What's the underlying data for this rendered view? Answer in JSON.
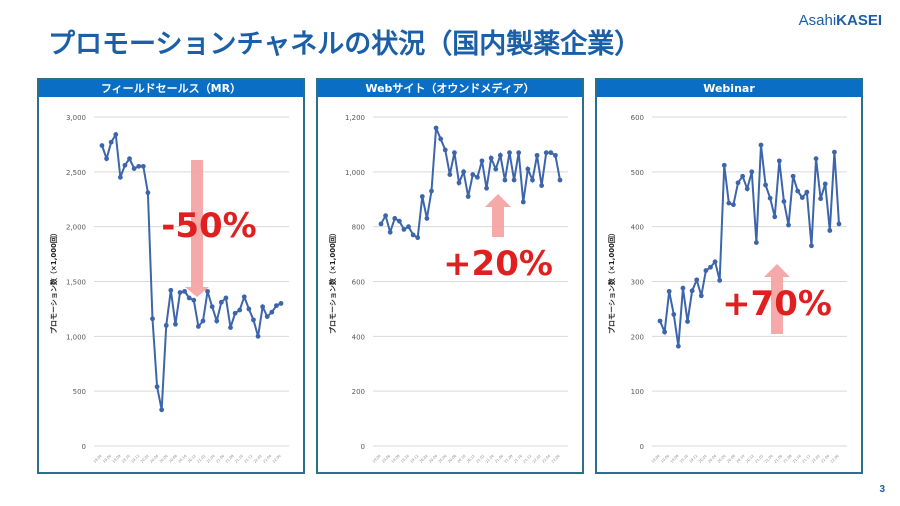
{
  "header": {
    "title": "プロモーションチャネルの状況（国内製薬企業）",
    "logo_light": "Asahi",
    "logo_bold": "KASEI"
  },
  "page_number": "3",
  "colors": {
    "title": "#1a5fa8",
    "panel_header": "#0a6fc4",
    "line": "#3d65ab",
    "arrow": "#f4a0a0",
    "annotation": "#e02020"
  },
  "chart_data": [
    {
      "type": "line",
      "title": "フィールドセールス（MR）",
      "ylabel": "プロモーション数（×1,000回）",
      "xlabel": "",
      "ylim": [
        0,
        3000
      ],
      "yticks": [
        0,
        500,
        1000,
        1500,
        2000,
        2500,
        3000
      ],
      "ytick_labels": [
        "0",
        "500",
        "1,000",
        "1,500",
        "2,000",
        "2,500",
        "3,000"
      ],
      "grid": true,
      "x_tick_labels": [
        "19.04",
        "19.06",
        "19.08",
        "19.10",
        "19.12",
        "20.02",
        "20.04",
        "20.06",
        "20.08",
        "20.10",
        "20.12",
        "21.02",
        "21.04",
        "21.06",
        "21.08",
        "21.10",
        "21.12",
        "22.02",
        "22.04",
        "22.06"
      ],
      "values": [
        2740,
        2620,
        2770,
        2840,
        2450,
        2560,
        2620,
        2530,
        2550,
        2550,
        2310,
        1160,
        540,
        330,
        1100,
        1420,
        1110,
        1400,
        1410,
        1350,
        1330,
        1090,
        1140,
        1410,
        1270,
        1140,
        1310,
        1350,
        1080,
        1210,
        1240,
        1360,
        1250,
        1150,
        1000,
        1270,
        1180,
        1220,
        1280,
        1300
      ],
      "annotation": {
        "text": "-50%",
        "direction": "down"
      }
    },
    {
      "type": "line",
      "title": "Webサイト（オウンドメディア）",
      "ylabel": "プロモーション数（×1,000回）",
      "xlabel": "",
      "ylim": [
        0,
        1200
      ],
      "yticks": [
        0,
        200,
        400,
        600,
        800,
        1000,
        1200
      ],
      "ytick_labels": [
        "0",
        "200",
        "400",
        "600",
        "800",
        "1,000",
        "1,200"
      ],
      "grid": true,
      "x_tick_labels": [
        "19.04",
        "19.06",
        "19.08",
        "19.10",
        "19.12",
        "20.02",
        "20.04",
        "20.06",
        "20.08",
        "20.10",
        "20.12",
        "21.02",
        "21.04",
        "21.06",
        "21.08",
        "21.10",
        "21.12",
        "22.02",
        "22.04",
        "22.06"
      ],
      "values": [
        810,
        840,
        780,
        830,
        820,
        790,
        800,
        770,
        760,
        910,
        830,
        930,
        1160,
        1120,
        1080,
        990,
        1070,
        960,
        1000,
        910,
        990,
        980,
        1040,
        940,
        1050,
        1010,
        1060,
        970,
        1070,
        970,
        1070,
        890,
        1010,
        970,
        1060,
        950,
        1070,
        1070,
        1060,
        970
      ],
      "annotation": {
        "text": "+20%",
        "direction": "up"
      }
    },
    {
      "type": "line",
      "title": "Webinar",
      "ylabel": "プロモーション数（×1,000回）",
      "xlabel": "",
      "ylim": [
        0,
        600
      ],
      "yticks": [
        0,
        100,
        200,
        300,
        400,
        500,
        600
      ],
      "ytick_labels": [
        "0",
        "100",
        "200",
        "300",
        "400",
        "500",
        "600"
      ],
      "grid": true,
      "x_tick_labels": [
        "19.04",
        "19.06",
        "19.08",
        "19.10",
        "19.12",
        "20.02",
        "20.04",
        "20.06",
        "20.08",
        "20.10",
        "20.12",
        "21.02",
        "21.04",
        "21.06",
        "21.08",
        "21.10",
        "21.12",
        "22.02",
        "22.04",
        "22.06"
      ],
      "values": [
        228,
        208,
        282,
        240,
        182,
        288,
        227,
        283,
        303,
        274,
        320,
        326,
        336,
        302,
        512,
        443,
        440,
        480,
        492,
        469,
        500,
        371,
        549,
        476,
        452,
        418,
        520,
        446,
        403,
        492,
        465,
        453,
        463,
        365,
        524,
        451,
        478,
        393,
        536,
        405
      ],
      "annotation": {
        "text": "+70%",
        "direction": "up"
      }
    }
  ]
}
